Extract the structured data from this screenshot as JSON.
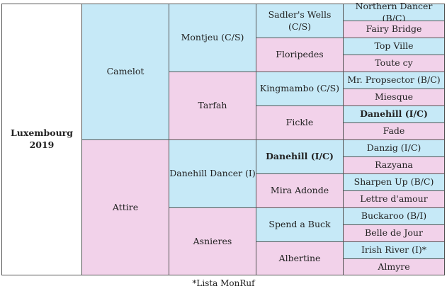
{
  "horse": {
    "name": "Luxembourg",
    "year": "2019"
  },
  "gen1": [
    {
      "name": "Camelot",
      "sex": "sire"
    },
    {
      "name": "Attire",
      "sex": "dam"
    }
  ],
  "gen2": [
    {
      "name": "Montjeu (C/S)"
    },
    {
      "name": "Tarfah"
    },
    {
      "name": "Danehill Dancer (I)"
    },
    {
      "name": "Asnieres"
    }
  ],
  "gen3": [
    {
      "name": "Sadler's Wells (C/S)"
    },
    {
      "name": "Floripedes"
    },
    {
      "name": "Kingmambo (C/S)"
    },
    {
      "name": "Fickle"
    },
    {
      "name": "Danehill (I/C)",
      "bold": true
    },
    {
      "name": "Mira Adonde"
    },
    {
      "name": "Spend a Buck"
    },
    {
      "name": "Albertine"
    }
  ],
  "gen4": [
    {
      "name": "Northern Dancer (B/C)"
    },
    {
      "name": "Fairy Bridge"
    },
    {
      "name": "Top Ville"
    },
    {
      "name": "Toute cy"
    },
    {
      "name": "Mr. Propsector (B/C)"
    },
    {
      "name": "Miesque"
    },
    {
      "name": "Danehill (I/C)",
      "bold": true
    },
    {
      "name": "Fade"
    },
    {
      "name": "Danzig (I/C)"
    },
    {
      "name": "Razyana"
    },
    {
      "name": "Sharpen Up (B/C)"
    },
    {
      "name": "Lettre d'amour"
    },
    {
      "name": "Buckaroo (B/I)"
    },
    {
      "name": "Belle de Jour"
    },
    {
      "name": "Irish River (I)*"
    },
    {
      "name": "Almyre"
    }
  ],
  "footnote": "*Lista MonRuf",
  "colors": {
    "sire_blue": "#c6e9f7",
    "dam_pink": "#f2d2ea",
    "border": "#555555"
  }
}
